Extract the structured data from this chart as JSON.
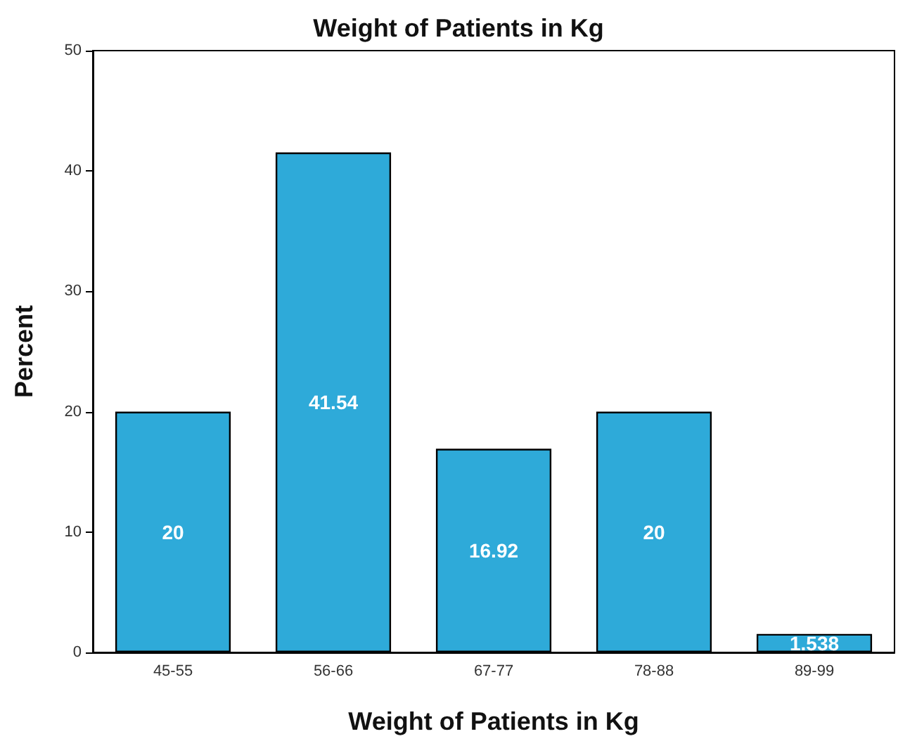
{
  "chart_data": {
    "type": "bar",
    "title": "Weight of Patients in Kg",
    "xlabel": "Weight of Patients in Kg",
    "ylabel": "Percent",
    "categories": [
      "45-55",
      "56-66",
      "67-77",
      "78-88",
      "89-99"
    ],
    "values": [
      20,
      41.54,
      16.92,
      20,
      1.538
    ],
    "color": "#2eaad9",
    "ylim": [
      0,
      50
    ],
    "yticks": [
      0,
      10,
      20,
      30,
      40,
      50
    ],
    "grid": false,
    "data_labels": true
  }
}
